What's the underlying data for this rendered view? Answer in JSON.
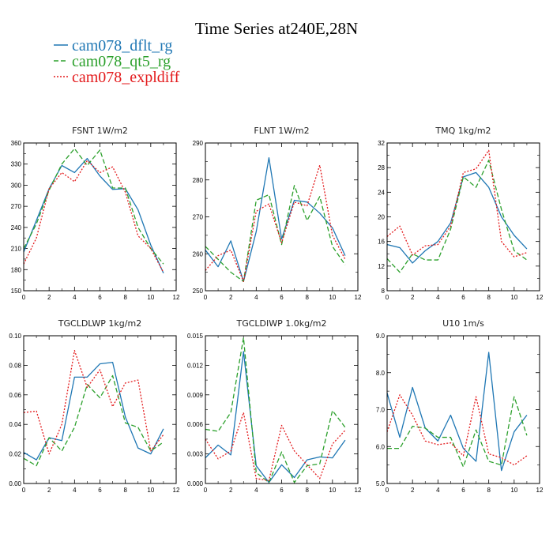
{
  "figure_title": "Time Series at240E,28N",
  "colors": {
    "s0": "#1f77b4",
    "s1": "#2ca02c",
    "s2": "#e31a1c"
  },
  "legend": [
    {
      "label": "cam078_dflt_rg",
      "color": "#1f77b4",
      "dash": ""
    },
    {
      "label": "cam078_qt5_rg",
      "color": "#2ca02c",
      "dash": "6,3"
    },
    {
      "label": "cam078_expldiff",
      "color": "#e31a1c",
      "dash": "2,2"
    }
  ],
  "chart_data": [
    {
      "type": "line",
      "title": "FSNT   1W/m2",
      "xlim": [
        0,
        12
      ],
      "ylim": [
        150,
        360
      ],
      "xticks": [
        "0",
        "2",
        "4",
        "6",
        "8",
        "10",
        "12"
      ],
      "yticks": [
        "150",
        "180",
        "210",
        "240",
        "270",
        "300",
        "330",
        "360"
      ],
      "x": [
        0,
        1,
        2,
        3,
        4,
        5,
        6,
        7,
        8,
        9,
        10,
        11
      ],
      "series": [
        {
          "name": "cam078_dflt_rg",
          "values": [
            205,
            250,
            295,
            328,
            318,
            338,
            313,
            294,
            295,
            265,
            215,
            175
          ]
        },
        {
          "name": "cam078_qt5_rg",
          "values": [
            210,
            245,
            293,
            330,
            352,
            328,
            350,
            296,
            296,
            240,
            210,
            188
          ]
        },
        {
          "name": "cam078_expldiff",
          "values": [
            188,
            225,
            295,
            318,
            305,
            335,
            318,
            326,
            290,
            228,
            210,
            176
          ]
        }
      ]
    },
    {
      "type": "line",
      "title": "FLNT   1W/m2",
      "xlim": [
        0,
        12
      ],
      "ylim": [
        250,
        290
      ],
      "xticks": [
        "0",
        "2",
        "4",
        "6",
        "8",
        "10",
        "12"
      ],
      "yticks": [
        "250",
        "260",
        "270",
        "280",
        "290"
      ],
      "x": [
        0,
        1,
        2,
        3,
        4,
        5,
        6,
        7,
        8,
        9,
        10,
        11
      ],
      "series": [
        {
          "name": "cam078_dflt_rg",
          "values": [
            261,
            256.5,
            263.5,
            252.5,
            266,
            286,
            264,
            274.5,
            274,
            271,
            267,
            259.5
          ]
        },
        {
          "name": "cam078_qt5_rg",
          "values": [
            262,
            258.5,
            255,
            252.5,
            274.5,
            276,
            262.5,
            278.5,
            269,
            275.5,
            262,
            257
          ]
        },
        {
          "name": "cam078_expldiff",
          "values": [
            255.5,
            259.5,
            261,
            252.5,
            271.5,
            273.5,
            263,
            274,
            273,
            284,
            265,
            258.5
          ]
        }
      ]
    },
    {
      "type": "line",
      "title": "TMQ   1kg/m2",
      "xlim": [
        0,
        12
      ],
      "ylim": [
        8,
        32
      ],
      "xticks": [
        "0",
        "2",
        "4",
        "6",
        "8",
        "10",
        "12"
      ],
      "yticks": [
        "8",
        "12",
        "16",
        "20",
        "24",
        "28",
        "32"
      ],
      "x": [
        0,
        1,
        2,
        3,
        4,
        5,
        6,
        7,
        8,
        9,
        10,
        11
      ],
      "series": [
        {
          "name": "cam078_dflt_rg",
          "values": [
            15.5,
            15,
            12.5,
            14.5,
            16,
            19,
            26.5,
            27.2,
            24.8,
            20,
            17,
            14.8
          ]
        },
        {
          "name": "cam078_qt5_rg",
          "values": [
            13.2,
            11,
            14,
            13,
            13,
            18,
            26.5,
            24.8,
            29.2,
            21.2,
            14.5,
            13
          ]
        },
        {
          "name": "cam078_expldiff",
          "values": [
            16.8,
            18.5,
            13.8,
            15.3,
            15.5,
            18.5,
            27.2,
            27.8,
            30.8,
            16,
            13.5,
            14.2
          ]
        }
      ]
    },
    {
      "type": "line",
      "title": "TGCLDLWP   1kg/m2",
      "xlim": [
        0,
        12
      ],
      "ylim": [
        0,
        0.1
      ],
      "xticks": [
        "0",
        "2",
        "4",
        "6",
        "8",
        "10",
        "12"
      ],
      "yticks": [
        "0.00",
        "0.02",
        "0.04",
        "0.06",
        "0.08",
        "0.10"
      ],
      "x": [
        0,
        1,
        2,
        3,
        4,
        5,
        6,
        7,
        8,
        9,
        10,
        11
      ],
      "series": [
        {
          "name": "cam078_dflt_rg",
          "values": [
            0.021,
            0.016,
            0.031,
            0.029,
            0.072,
            0.072,
            0.081,
            0.082,
            0.045,
            0.024,
            0.02,
            0.037
          ]
        },
        {
          "name": "cam078_qt5_rg",
          "values": [
            0.017,
            0.012,
            0.031,
            0.022,
            0.038,
            0.067,
            0.058,
            0.073,
            0.041,
            0.038,
            0.022,
            0.028
          ]
        },
        {
          "name": "cam078_expldiff",
          "values": [
            0.048,
            0.049,
            0.02,
            0.04,
            0.09,
            0.065,
            0.077,
            0.052,
            0.068,
            0.07,
            0.022,
            0.033
          ]
        }
      ]
    },
    {
      "type": "line",
      "title": "TGCLDIWP   1.0kg/m2",
      "xlim": [
        0,
        12
      ],
      "ylim": [
        0,
        0.015
      ],
      "xticks": [
        "0",
        "2",
        "4",
        "6",
        "8",
        "10",
        "12"
      ],
      "yticks": [
        "0.000",
        "0.003",
        "0.006",
        "0.009",
        "0.012",
        "0.015"
      ],
      "x": [
        0,
        1,
        2,
        3,
        4,
        5,
        6,
        7,
        8,
        9,
        10,
        11
      ],
      "series": [
        {
          "name": "cam078_dflt_rg",
          "values": [
            0.0026,
            0.0039,
            0.0029,
            0.0134,
            0.0018,
            0.0001,
            0.0019,
            0.0006,
            0.0024,
            0.0027,
            0.0026,
            0.0044
          ]
        },
        {
          "name": "cam078_qt5_rg",
          "values": [
            0.0055,
            0.0053,
            0.0072,
            0.0148,
            0.0011,
            0.0001,
            0.0032,
            0.0001,
            0.0018,
            0.002,
            0.0074,
            0.0057
          ]
        },
        {
          "name": "cam078_expldiff",
          "values": [
            0.0045,
            0.0025,
            0.0033,
            0.0072,
            0.0005,
            0.0003,
            0.0059,
            0.0033,
            0.0019,
            0.0005,
            0.004,
            0.0054
          ]
        }
      ]
    },
    {
      "type": "line",
      "title": "U10   1m/s",
      "xlim": [
        0,
        12
      ],
      "ylim": [
        5.0,
        9.0
      ],
      "xticks": [
        "0",
        "2",
        "4",
        "6",
        "8",
        "10",
        "12"
      ],
      "yticks": [
        "5.0",
        "6.0",
        "7.0",
        "8.0",
        "9.0"
      ],
      "x": [
        0,
        1,
        2,
        3,
        4,
        5,
        6,
        7,
        8,
        9,
        10,
        11
      ],
      "series": [
        {
          "name": "cam078_dflt_rg",
          "values": [
            7.45,
            6.25,
            7.6,
            6.5,
            6.15,
            6.85,
            5.95,
            5.6,
            8.55,
            5.35,
            6.4,
            6.85
          ]
        },
        {
          "name": "cam078_qt5_rg",
          "values": [
            5.95,
            5.95,
            6.55,
            6.5,
            6.25,
            6.25,
            5.45,
            6.45,
            5.6,
            5.5,
            7.35,
            6.3
          ]
        },
        {
          "name": "cam078_expldiff",
          "values": [
            6.4,
            7.4,
            6.85,
            6.15,
            6.05,
            6.1,
            5.75,
            7.35,
            5.8,
            5.7,
            5.5,
            5.75
          ]
        }
      ]
    }
  ]
}
